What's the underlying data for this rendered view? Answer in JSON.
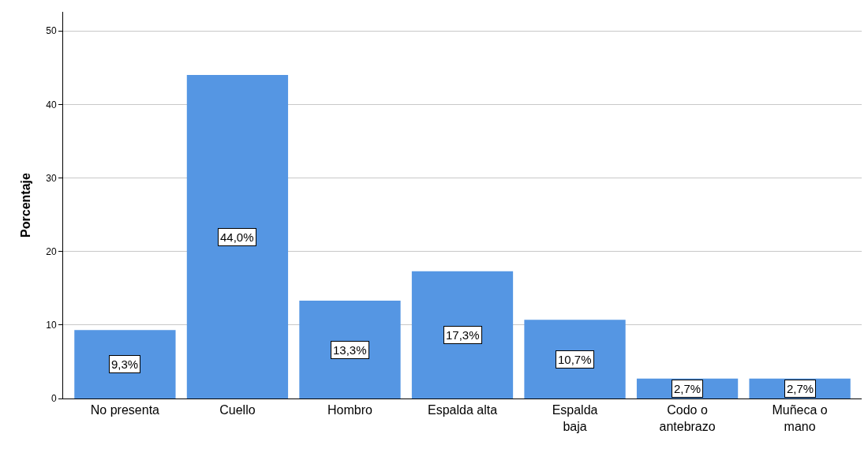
{
  "chart_data": {
    "type": "bar",
    "ylabel": "Porcentaje",
    "categories": [
      "No presenta",
      "Cuello",
      "Hombro",
      "Espalda alta",
      "Espalda\nbaja",
      "Codo o\nantebrazo",
      "Muñeca o\nmano"
    ],
    "values": [
      9.3,
      44.0,
      13.3,
      17.3,
      10.7,
      2.7,
      2.7
    ],
    "value_labels": [
      "9,3%",
      "44,0%",
      "13,3%",
      "17,3%",
      "10,7%",
      "2,7%",
      "2,7%"
    ],
    "color": "#5596e3",
    "ylim": [
      0,
      52.6
    ],
    "yticks": [
      0,
      10,
      20,
      30,
      40,
      50
    ],
    "grid": "y",
    "legend": false
  }
}
